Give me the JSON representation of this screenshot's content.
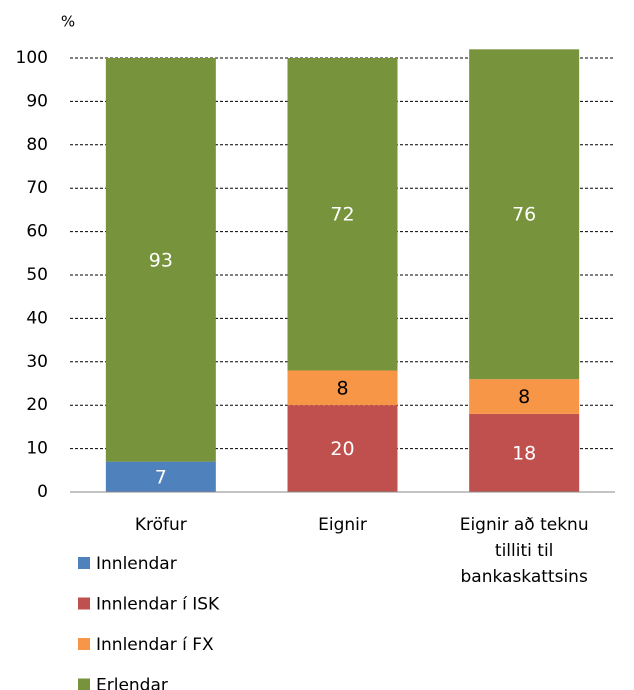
{
  "chart_data": {
    "type": "stacked_bar",
    "y_label": "%",
    "categories": [
      "Kröfur",
      "Eignir",
      "Eignir að teknu tilliti til bankaskattsins"
    ],
    "series": [
      {
        "name": "Innlendar",
        "color": "#4f81bd",
        "label_color": "#ffffff",
        "values": [
          7,
          null,
          null
        ]
      },
      {
        "name": "Innlendar í ISK",
        "color": "#c0504d",
        "label_color": "#ffffff",
        "values": [
          null,
          20,
          18
        ]
      },
      {
        "name": "Innlendar í FX",
        "color": "#f79646",
        "label_color": "#000000",
        "values": [
          null,
          8,
          8
        ]
      },
      {
        "name": "Erlendar",
        "color": "#77933c",
        "label_color": "#ffffff",
        "values": [
          93,
          72,
          76
        ]
      }
    ],
    "ylim": [
      0,
      100
    ],
    "yticks": [
      0,
      10,
      20,
      30,
      40,
      50,
      60,
      70,
      80,
      90,
      100
    ],
    "grid": true,
    "legend": "bottom"
  }
}
